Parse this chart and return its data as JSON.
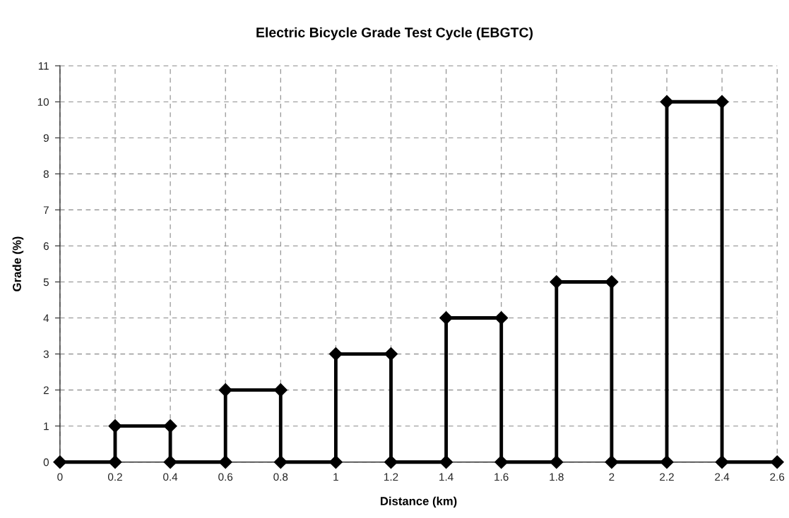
{
  "chart_data": {
    "type": "line",
    "title": "Electric Bicycle Grade Test Cycle (EBGTC)",
    "xlabel": "Distance (km)",
    "ylabel": "Grade (%)",
    "x": [
      0,
      0.2,
      0.2,
      0.4,
      0.4,
      0.6,
      0.6,
      0.8,
      0.8,
      1,
      1,
      1.2,
      1.2,
      1.4,
      1.4,
      1.6,
      1.6,
      1.8,
      1.8,
      2,
      2,
      2.2,
      2.2,
      2.4,
      2.4,
      2.6
    ],
    "series": [
      {
        "color": "#000000",
        "values": [
          0,
          0,
          1,
          1,
          0,
          0,
          2,
          2,
          0,
          0,
          3,
          3,
          0,
          0,
          4,
          4,
          0,
          0,
          5,
          5,
          0,
          0,
          10,
          10,
          0,
          0
        ]
      }
    ],
    "xlim": [
      0,
      2.6
    ],
    "xticks": [
      0,
      0.2,
      0.4,
      0.6,
      0.8,
      1,
      1.2,
      1.4,
      1.6,
      1.8,
      2,
      2.2,
      2.4,
      2.6
    ],
    "ylim": [
      0,
      11
    ],
    "yticks": [
      0,
      1,
      2,
      3,
      4,
      5,
      6,
      7,
      8,
      9,
      10,
      11
    ],
    "grid": true,
    "marker": "diamond",
    "line_style": "solid"
  }
}
